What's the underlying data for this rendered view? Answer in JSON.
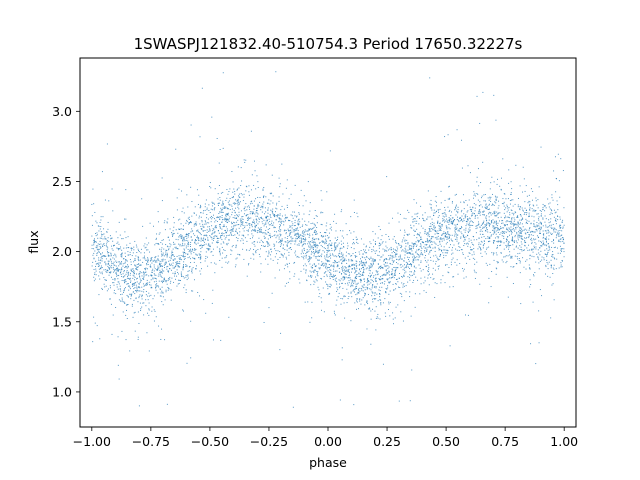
{
  "chart_data": {
    "type": "scatter",
    "title": "1SWASPJ121832.40-510754.3 Period 17650.32227s",
    "xlabel": "phase",
    "ylabel": "flux",
    "xlim": [
      -1.05,
      1.05
    ],
    "ylim": [
      0.75,
      3.38
    ],
    "x_ticks": [
      -1.0,
      -0.75,
      -0.5,
      -0.25,
      0.0,
      0.25,
      0.5,
      0.75,
      1.0
    ],
    "x_tick_labels": [
      "−1.00",
      "−0.75",
      "−0.50",
      "−0.25",
      "0.00",
      "0.25",
      "0.50",
      "0.75",
      "1.00"
    ],
    "y_ticks": [
      1.0,
      1.5,
      2.0,
      2.5,
      3.0
    ],
    "y_tick_labels": [
      "1.0",
      "1.5",
      "2.0",
      "2.5",
      "3.0"
    ],
    "grid": false,
    "legend": "none",
    "marker_color": "#1f77b4",
    "series": [
      {
        "x": [
          -1.0,
          -0.95,
          -0.9,
          -0.85,
          -0.8,
          -0.75,
          -0.7,
          -0.65,
          -0.6,
          -0.55,
          -0.5,
          -0.45,
          -0.4,
          -0.35,
          -0.3,
          -0.25,
          -0.2,
          -0.15,
          -0.1,
          -0.05,
          0.0,
          0.05,
          0.1,
          0.15,
          0.2,
          0.25,
          0.3,
          0.35,
          0.4,
          0.45,
          0.5,
          0.55,
          0.6,
          0.65,
          0.7,
          0.75,
          0.8,
          0.85,
          0.9,
          0.95,
          1.0
        ],
        "y": [
          2.05,
          1.98,
          1.9,
          1.85,
          1.82,
          1.83,
          1.88,
          1.95,
          2.03,
          2.1,
          2.15,
          2.19,
          2.21,
          2.22,
          2.21,
          2.19,
          2.16,
          2.11,
          2.06,
          2.0,
          1.95,
          1.9,
          1.86,
          1.83,
          1.83,
          1.86,
          1.92,
          1.98,
          2.04,
          2.09,
          2.13,
          2.17,
          2.19,
          2.2,
          2.2,
          2.19,
          2.17,
          2.15,
          2.12,
          2.09,
          2.07
        ]
      }
    ]
  }
}
